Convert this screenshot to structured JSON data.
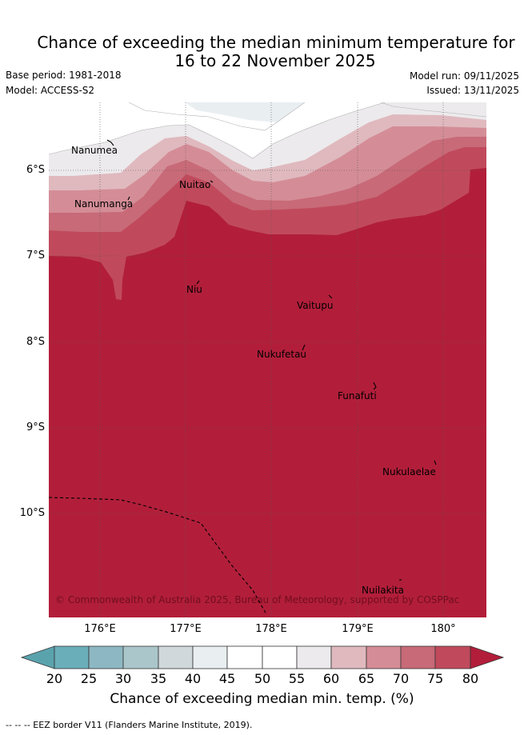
{
  "title_line1": "Chance of exceeding the median minimum temperature for",
  "title_line2": "16 to 22 November 2025",
  "base_period": "Base period: 1981-2018",
  "model": "Model: ACCESS-S2",
  "model_run": "Model run: 09/11/2025",
  "issued": "Issued: 13/11/2025",
  "lat_labels": [
    "6°S",
    "7°S",
    "8°S",
    "9°S",
    "10°S"
  ],
  "lon_labels": [
    "176°E",
    "177°E",
    "178°E",
    "179°E",
    "180°"
  ],
  "places": {
    "nanumea": "Nanumea",
    "nanumanga": "Nanumanga",
    "nuitao": "Nuitao",
    "niu": "Niu",
    "vaitupu": "Vaitupu",
    "nukufetau": "Nukufetau",
    "funafuti": "Funafuti",
    "nukulaelae": "Nukulaelae",
    "nuilakita": "Nuilakita"
  },
  "copyright": "© Commonwealth of Australia 2025, Bureau of Meteorology, supported by COSPPac",
  "colorbar_ticks": [
    "20",
    "25",
    "30",
    "35",
    "40",
    "45",
    "50",
    "55",
    "60",
    "65",
    "70",
    "75",
    "80"
  ],
  "colorbar_title": "Chance of exceeding median min. temp. (%)",
  "footnote": "-- -- -- EEZ border V11 (Flanders Marine Institute, 2019).",
  "colors": {
    "c20": "#5aa3ad",
    "c25": "#6aaeb9",
    "c30": "#8db8c3",
    "c35": "#abc6ca",
    "c40": "#d0d8db",
    "c45": "#e9eef1",
    "c50": "#ffffff",
    "c55": "#ffffff",
    "c60": "#eceaec",
    "c65": "#dfb9be",
    "c70": "#d48d97",
    "c75": "#c86a78",
    "c80": "#c04a5c",
    "c80plus": "#b21e3a"
  }
}
